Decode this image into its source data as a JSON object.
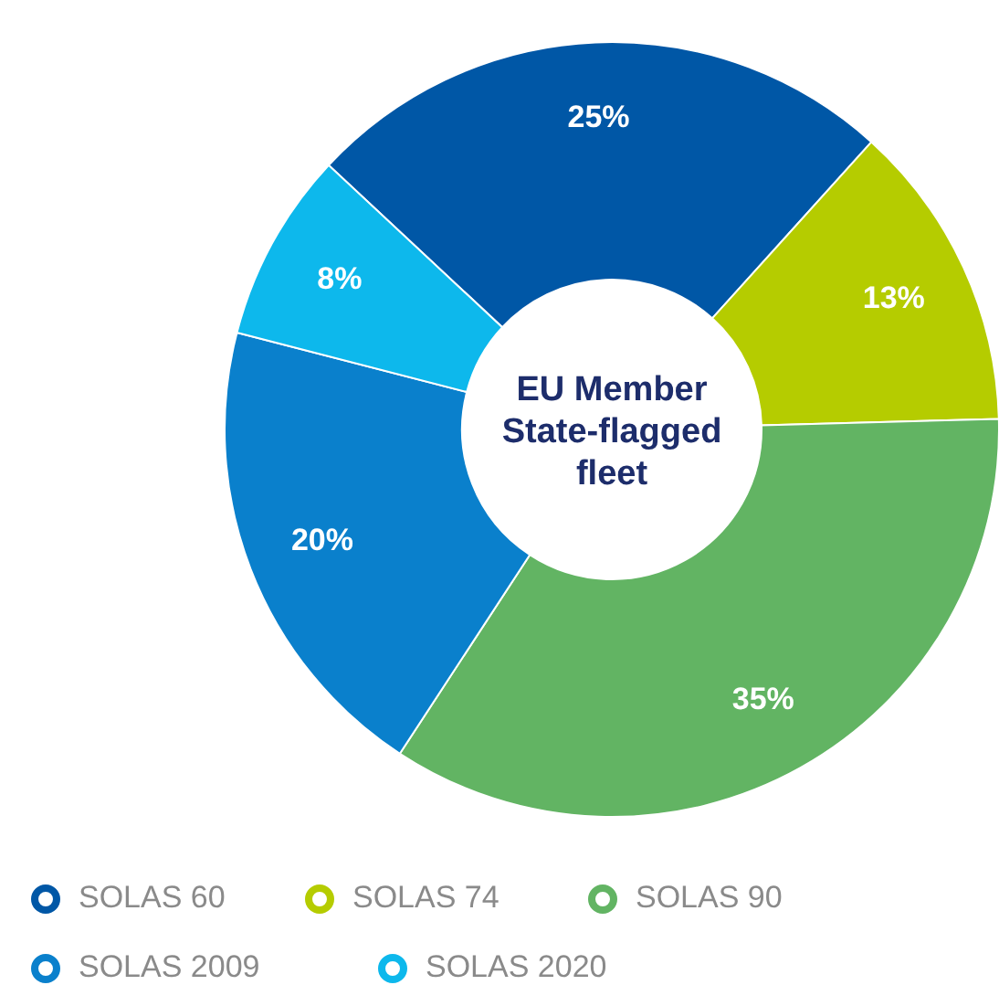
{
  "chart_data": {
    "type": "donut",
    "title": "EU Member State-flagged fleet",
    "categories": [
      "SOLAS 60",
      "SOLAS 74",
      "SOLAS 90",
      "SOLAS 2009",
      "SOLAS 2020"
    ],
    "values": [
      25,
      13,
      35,
      20,
      8
    ],
    "value_labels": [
      "25%",
      "13%",
      "35%",
      "20%",
      "8%"
    ],
    "colors": [
      "#0057a6",
      "#b5cc00",
      "#62b463",
      "#0a80cc",
      "#0db8ec"
    ],
    "legend": "bottom"
  }
}
